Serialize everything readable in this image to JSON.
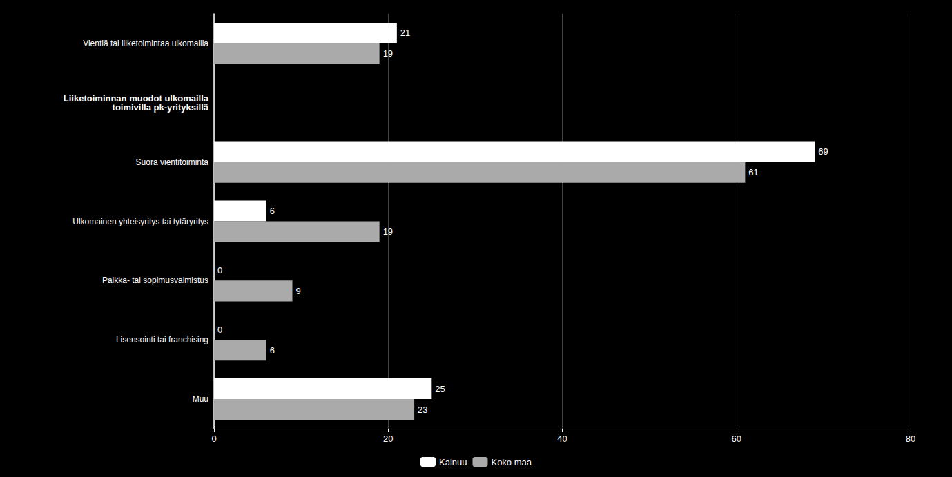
{
  "chart_data": {
    "type": "bar",
    "orientation": "horizontal",
    "categories": [
      "Vientiä tai liiketoimintaa ulkomailla",
      "Liiketoiminnan muodot ulkomailla\ntoimivilla pk-yrityksillä",
      "Suora vientitoiminta",
      "Ulkomainen yhteisyritys tai tytäryritys",
      "Palkka- tai sopimusvalmistus",
      "Lisensointi tai franchising",
      "Muu"
    ],
    "series": [
      {
        "name": "Kainuu",
        "color": "#ffffff",
        "values": [
          21,
          null,
          69,
          6,
          0,
          0,
          25
        ]
      },
      {
        "name": "Koko maa",
        "color": "#aaaaaa",
        "values": [
          19,
          null,
          61,
          19,
          9,
          6,
          23
        ]
      }
    ],
    "xlim": [
      0,
      80
    ],
    "xticks": [
      0,
      20,
      40,
      60,
      80
    ],
    "grid": true,
    "legend": "bottom",
    "data_labels": true
  }
}
